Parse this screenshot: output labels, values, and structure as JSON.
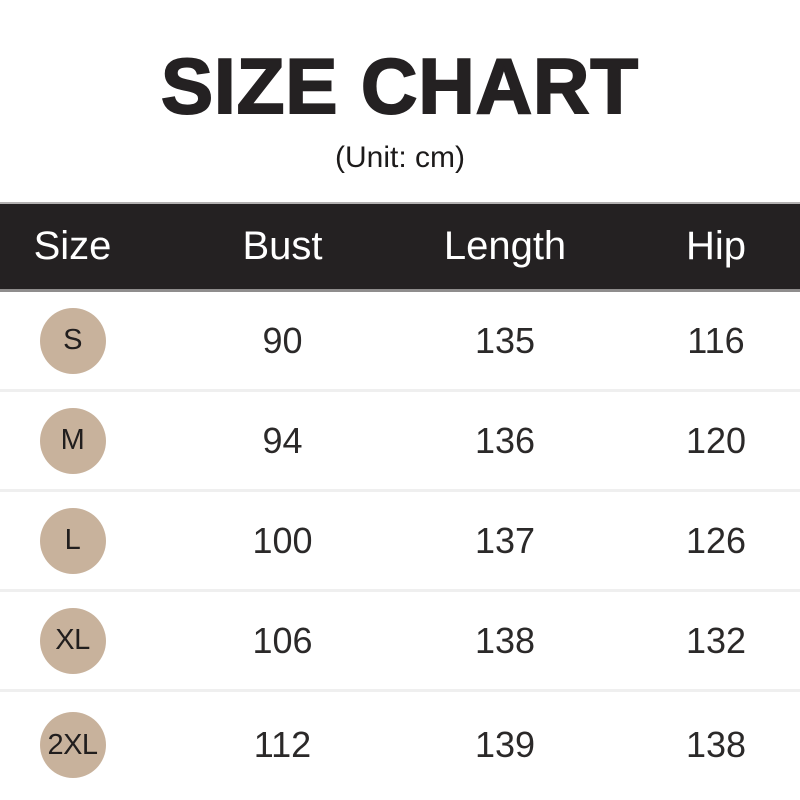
{
  "chart_data": {
    "type": "table",
    "title": "SIZE CHART",
    "subtitle": "(Unit: cm)",
    "columns": [
      "Size",
      "Bust",
      "Length",
      "Hip"
    ],
    "rows": [
      [
        "S",
        "90",
        "135",
        "116"
      ],
      [
        "M",
        "94",
        "136",
        "120"
      ],
      [
        "L",
        "100",
        "137",
        "126"
      ],
      [
        "XL",
        "106",
        "138",
        "132"
      ],
      [
        "2XL",
        "112",
        "139",
        "138"
      ]
    ]
  },
  "colors": {
    "title_text": "#242122",
    "header_bg": "#242122",
    "header_text": "#ffffff",
    "badge_bg": "#c8b29c",
    "badge_text": "#211e1e",
    "value_text": "#2b2929",
    "row_divider": "#efefef",
    "header_edge_top": "#b3b1b1",
    "header_edge_bottom": "#8f8d8d"
  }
}
